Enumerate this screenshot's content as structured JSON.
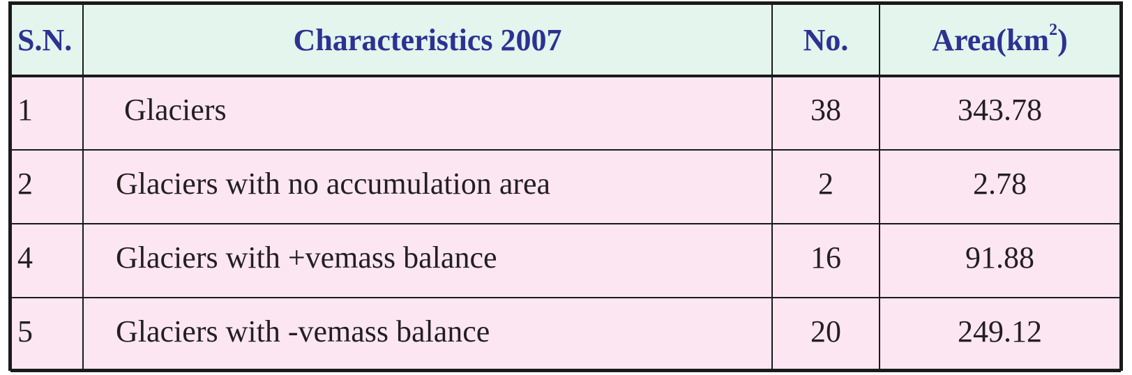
{
  "table": {
    "headers": {
      "sn": "S.N.",
      "characteristics": "Characteristics 2007",
      "no": "No.",
      "area_base": "Area(km",
      "area_sup": "2",
      "area_close": ")"
    },
    "rows": [
      {
        "sn": "1",
        "characteristics": "Glaciers",
        "no": "38",
        "area": "343.78"
      },
      {
        "sn": "2",
        "characteristics": "Glaciers with no accumulation area",
        "no": "2",
        "area": "2.78"
      },
      {
        "sn": "4",
        "characteristics": "Glaciers with +vemass balance",
        "no": "16",
        "area": "91.88"
      },
      {
        "sn": "5",
        "characteristics": "Glaciers with -vemass balance",
        "no": "20",
        "area": "249.12"
      }
    ]
  },
  "colors": {
    "header_bg": "#e3f5ec",
    "header_text": "#2e3192",
    "body_bg": "#fbe6f2",
    "body_text": "#231f20",
    "border": "#1a1a1a"
  }
}
